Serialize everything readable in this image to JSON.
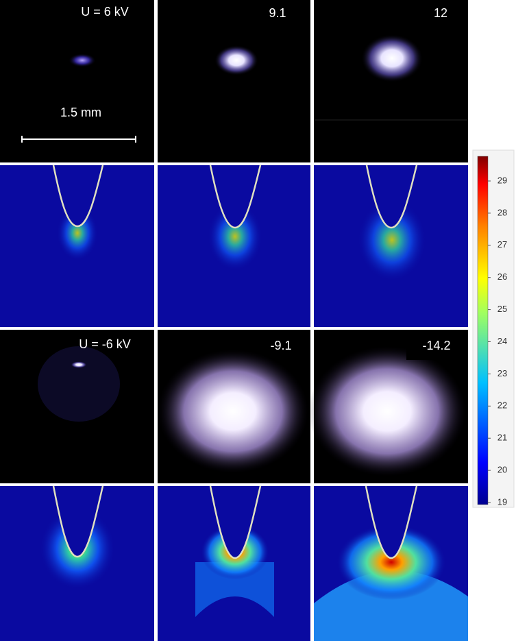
{
  "panels": {
    "top_labels": [
      "U = 6 kV",
      "9.1",
      "12"
    ],
    "scale_bar": "1.5 mm",
    "bottom_labels": [
      "U = -6 kV",
      "-9.1",
      "-14.2"
    ]
  },
  "colorbar": {
    "ticks": [
      19,
      20,
      21,
      22,
      23,
      24,
      25,
      26,
      27,
      28,
      29
    ]
  }
}
